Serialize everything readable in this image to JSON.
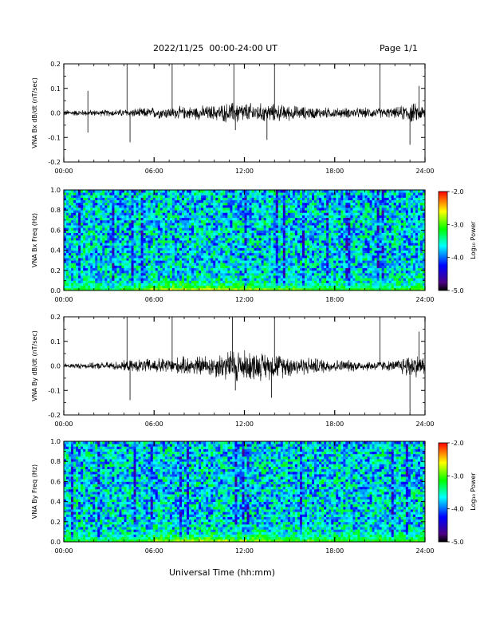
{
  "header": {
    "title": "2022/11/25  00:00-24:00 UT",
    "page": "Page 1/1",
    "xaxis_label": "Universal Time (hh:mm)"
  },
  "chart_data": [
    {
      "type": "line",
      "ylabel": "VNA Bx dB/dt (nT/sec)",
      "x_ticks": [
        "00:00",
        "06:00",
        "12:00",
        "18:00",
        "24:00"
      ],
      "xlim": [
        0,
        24
      ],
      "ylim": [
        -0.2,
        0.2
      ],
      "y_ticks": [
        "0.2",
        "0.1",
        "0.0",
        "-0.1",
        "-0.2"
      ],
      "noise_envelope": {
        "x": [
          0,
          2,
          4,
          6,
          8,
          10,
          11.5,
          12,
          14,
          16,
          18,
          20,
          22,
          23,
          24
        ],
        "y": [
          0.012,
          0.012,
          0.015,
          0.022,
          0.025,
          0.03,
          0.045,
          0.04,
          0.035,
          0.025,
          0.02,
          0.02,
          0.02,
          0.04,
          0.03
        ]
      },
      "spikes": [
        {
          "x": 1.6,
          "y": -0.08
        },
        {
          "x": 1.6,
          "y": 0.09
        },
        {
          "x": 4.2,
          "y": 0.2
        },
        {
          "x": 4.4,
          "y": -0.12
        },
        {
          "x": 7.2,
          "y": 0.2
        },
        {
          "x": 11.3,
          "y": 0.2
        },
        {
          "x": 11.4,
          "y": -0.07
        },
        {
          "x": 14.0,
          "y": 0.2
        },
        {
          "x": 13.5,
          "y": -0.11
        },
        {
          "x": 21.0,
          "y": 0.2
        },
        {
          "x": 23.0,
          "y": -0.13
        },
        {
          "x": 23.6,
          "y": 0.11
        }
      ]
    },
    {
      "type": "heatmap",
      "ylabel": "VNA Bx Freq (Hz)",
      "x_ticks": [
        "00:00",
        "06:00",
        "12:00",
        "18:00",
        "24:00"
      ],
      "xlim": [
        0,
        24
      ],
      "ylim": [
        0,
        1.0
      ],
      "y_ticks": [
        "1.0",
        "0.8",
        "0.6",
        "0.4",
        "0.2",
        "0.0"
      ],
      "colorbar_label": "Log₁₀ Power",
      "colorbar_ticks": [
        "-2.0",
        "-3.0",
        "-4.0",
        "-5.0"
      ],
      "zlim": [
        -5.0,
        -2.0
      ],
      "background_level": -3.7,
      "low_freq_enhancement": {
        "x": [
          0,
          3,
          6,
          9,
          12,
          15,
          18,
          21,
          24
        ],
        "level": [
          -3.0,
          -3.2,
          -2.6,
          -2.5,
          -2.5,
          -2.8,
          -3.0,
          -3.0,
          -2.9
        ]
      }
    },
    {
      "type": "line",
      "ylabel": "VNA By dB/dt (nT/sec)",
      "x_ticks": [
        "00:00",
        "06:00",
        "12:00",
        "18:00",
        "24:00"
      ],
      "xlim": [
        0,
        24
      ],
      "ylim": [
        -0.2,
        0.2
      ],
      "y_ticks": [
        "0.2",
        "0.1",
        "0.0",
        "-0.1",
        "-0.2"
      ],
      "noise_envelope": {
        "x": [
          0,
          2,
          4,
          6,
          8,
          10,
          11.5,
          12,
          14,
          16,
          18,
          20,
          22,
          23,
          24
        ],
        "y": [
          0.01,
          0.012,
          0.02,
          0.03,
          0.035,
          0.045,
          0.07,
          0.06,
          0.05,
          0.035,
          0.025,
          0.02,
          0.02,
          0.05,
          0.035
        ]
      },
      "spikes": [
        {
          "x": 4.2,
          "y": 0.2
        },
        {
          "x": 4.4,
          "y": -0.14
        },
        {
          "x": 7.2,
          "y": 0.2
        },
        {
          "x": 11.2,
          "y": 0.2
        },
        {
          "x": 11.4,
          "y": -0.1
        },
        {
          "x": 14.0,
          "y": 0.2
        },
        {
          "x": 13.8,
          "y": -0.13
        },
        {
          "x": 21.0,
          "y": 0.2
        },
        {
          "x": 23.0,
          "y": -0.2
        },
        {
          "x": 23.6,
          "y": 0.14
        }
      ]
    },
    {
      "type": "heatmap",
      "ylabel": "VNA By Freq (Hz)",
      "x_ticks": [
        "00:00",
        "06:00",
        "12:00",
        "18:00",
        "24:00"
      ],
      "xlim": [
        0,
        24
      ],
      "ylim": [
        0,
        1.0
      ],
      "y_ticks": [
        "1.0",
        "0.8",
        "0.6",
        "0.4",
        "0.2",
        "0.0"
      ],
      "colorbar_label": "Log₁₀ Power",
      "colorbar_ticks": [
        "-2.0",
        "-3.0",
        "-4.0",
        "-5.0"
      ],
      "zlim": [
        -5.0,
        -2.0
      ],
      "background_level": -3.7,
      "low_freq_enhancement": {
        "x": [
          0,
          3,
          6,
          9,
          12,
          15,
          18,
          21,
          24
        ],
        "level": [
          -3.0,
          -3.2,
          -2.7,
          -2.6,
          -2.6,
          -2.8,
          -2.9,
          -3.0,
          -2.9
        ]
      }
    }
  ]
}
